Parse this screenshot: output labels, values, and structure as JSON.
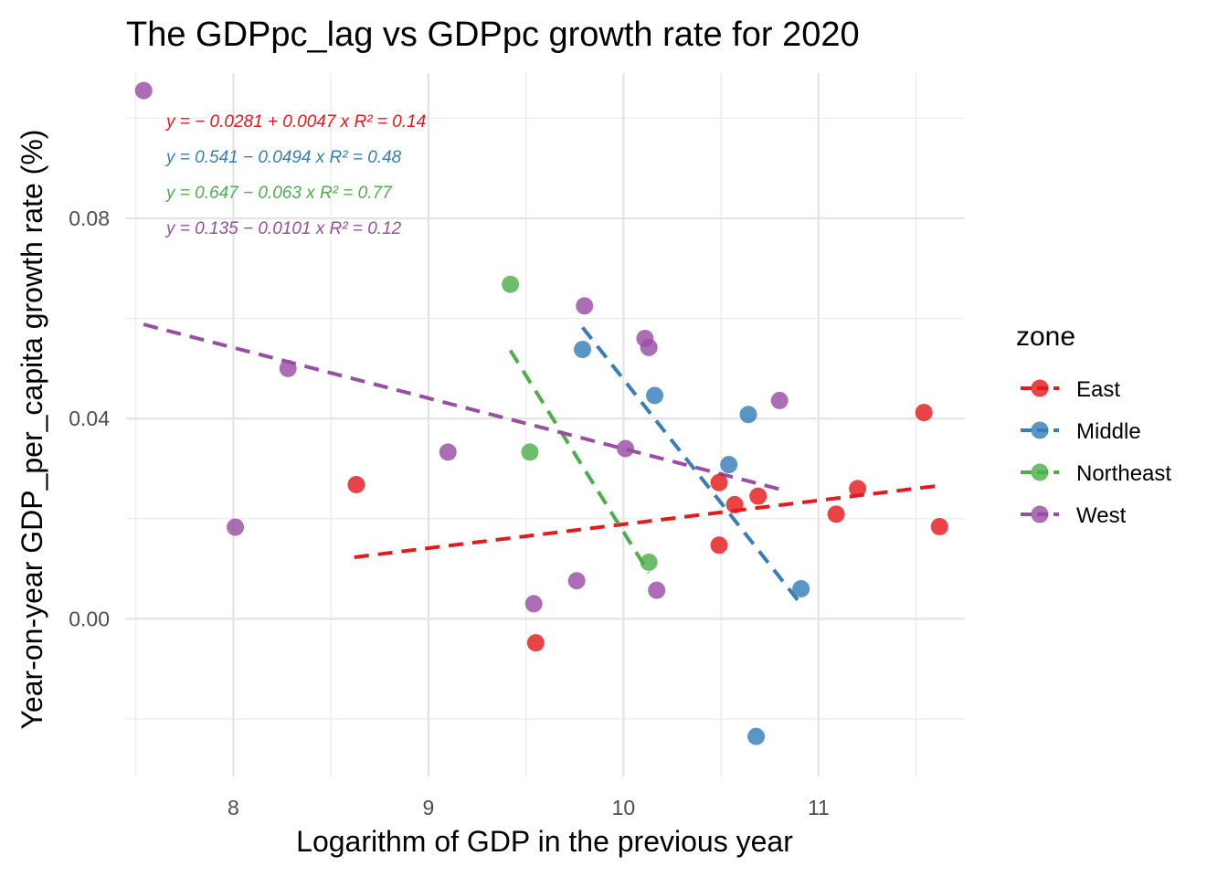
{
  "chart_data": {
    "type": "scatter",
    "title": "The GDPpc_lag vs GDPpc growth rate for 2020",
    "xlabel": "Logarithm of GDP in the previous year",
    "ylabel": "Year-on-year GDP_per_capita growth rate (%)",
    "xlim": [
      7.45,
      11.75
    ],
    "ylim": [
      -0.0315,
      0.109
    ],
    "x_ticks": [
      8,
      9,
      10,
      11
    ],
    "x_tick_labels": [
      "8",
      "9",
      "10",
      "11"
    ],
    "y_ticks": [
      0.0,
      0.04,
      0.08
    ],
    "y_tick_labels": [
      "0.00",
      "0.04",
      "0.08"
    ],
    "grid": true,
    "legend": {
      "title": "zone",
      "position": "right"
    },
    "series": [
      {
        "name": "East",
        "color": "#e41a1c",
        "points": [
          {
            "x": 8.63,
            "y": 0.0268
          },
          {
            "x": 9.55,
            "y": -0.0048
          },
          {
            "x": 10.49,
            "y": 0.0272
          },
          {
            "x": 10.49,
            "y": 0.0147
          },
          {
            "x": 10.57,
            "y": 0.0228
          },
          {
            "x": 10.69,
            "y": 0.0245
          },
          {
            "x": 11.09,
            "y": 0.0209
          },
          {
            "x": 11.2,
            "y": 0.026
          },
          {
            "x": 11.54,
            "y": 0.0412
          },
          {
            "x": 11.62,
            "y": 0.0184
          }
        ],
        "fit": {
          "x": [
            8.62,
            11.62
          ],
          "y": [
            0.0123,
            0.0266
          ],
          "equation": "y = − 0.0281 + 0.0047 x",
          "r2_label": "R² = 0.14"
        }
      },
      {
        "name": "Middle",
        "color": "#377eb8",
        "points": [
          {
            "x": 9.79,
            "y": 0.0538
          },
          {
            "x": 10.16,
            "y": 0.0446
          },
          {
            "x": 10.54,
            "y": 0.0308
          },
          {
            "x": 10.64,
            "y": 0.0408
          },
          {
            "x": 10.68,
            "y": -0.0235
          },
          {
            "x": 10.91,
            "y": 0.006
          }
        ],
        "fit": {
          "x": [
            9.79,
            10.91
          ],
          "y": [
            0.0582,
            0.0029
          ],
          "equation": "y = 0.541 − 0.0494 x",
          "r2_label": "R² = 0.48"
        }
      },
      {
        "name": "Northeast",
        "color": "#4daf4a",
        "points": [
          {
            "x": 9.42,
            "y": 0.0668
          },
          {
            "x": 9.52,
            "y": 0.0333
          },
          {
            "x": 10.13,
            "y": 0.0113
          }
        ],
        "fit": {
          "x": [
            9.42,
            10.13
          ],
          "y": [
            0.0536,
            0.0092
          ],
          "equation": "y = 0.647 − 0.063 x",
          "r2_label": "R² = 0.77"
        }
      },
      {
        "name": "West",
        "color": "#984ea3",
        "points": [
          {
            "x": 7.54,
            "y": 0.1055
          },
          {
            "x": 8.01,
            "y": 0.0183
          },
          {
            "x": 8.28,
            "y": 0.05
          },
          {
            "x": 9.1,
            "y": 0.0333
          },
          {
            "x": 9.54,
            "y": 0.003
          },
          {
            "x": 9.76,
            "y": 0.0076
          },
          {
            "x": 9.8,
            "y": 0.0625
          },
          {
            "x": 10.01,
            "y": 0.034
          },
          {
            "x": 10.11,
            "y": 0.056
          },
          {
            "x": 10.13,
            "y": 0.0542
          },
          {
            "x": 10.17,
            "y": 0.0057
          },
          {
            "x": 10.8,
            "y": 0.0436
          }
        ],
        "fit": {
          "x": [
            7.54,
            10.8
          ],
          "y": [
            0.0588,
            0.0259
          ],
          "equation": "y = 0.135 − 0.0101 x",
          "r2_label": "R² = 0.12"
        }
      }
    ]
  }
}
